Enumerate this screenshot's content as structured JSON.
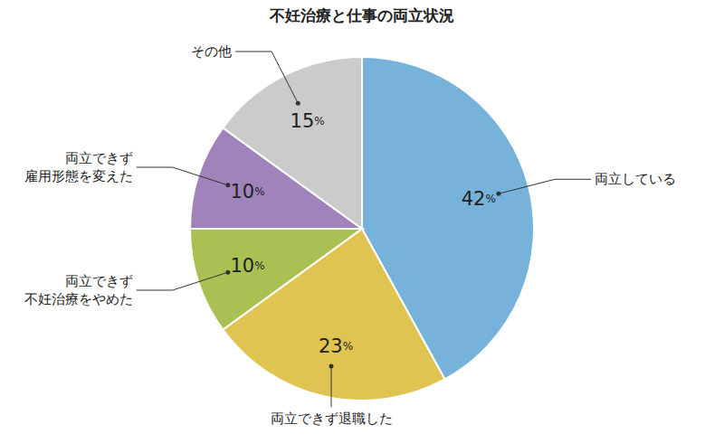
{
  "chart_data": {
    "type": "pie",
    "title": "不妊治療と仕事の両立状況",
    "categories": [
      "両立している",
      "両立できず退職した",
      "両立できず不妊治療をやめた",
      "両立できず雇用形態を変えた",
      "その他"
    ],
    "values": [
      42,
      23,
      10,
      10,
      15
    ],
    "value_labels": [
      "42%",
      "23%",
      "10%",
      "10%",
      "15%"
    ],
    "colors": [
      "#76b2d9",
      "#e0c451",
      "#a9c153",
      "#a083bb",
      "#cbcbcb"
    ],
    "data_labels": true
  }
}
